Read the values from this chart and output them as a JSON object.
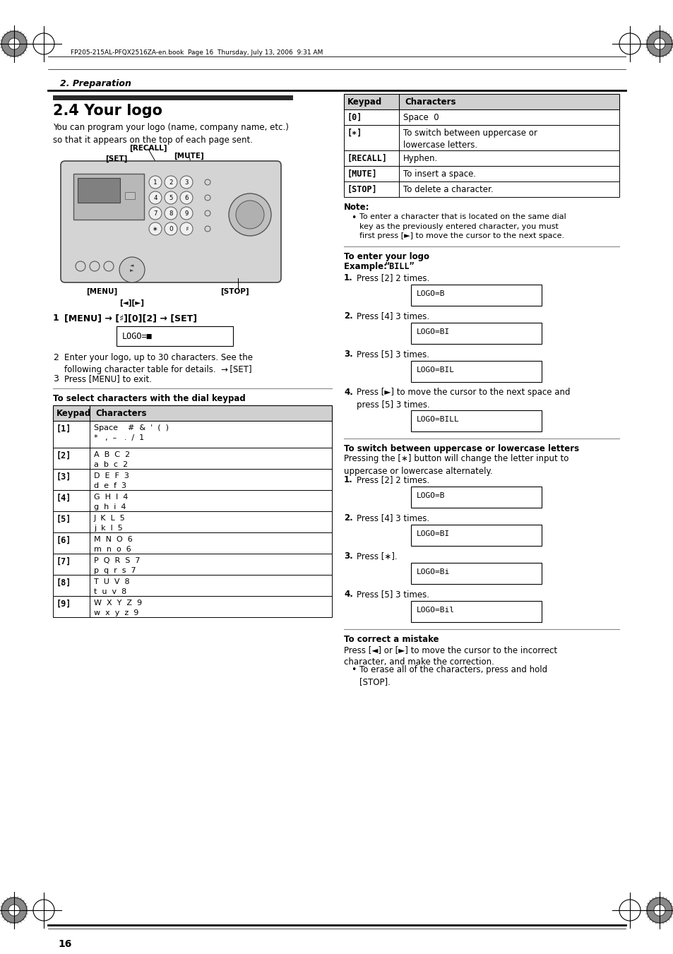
{
  "page_title": "2. Preparation",
  "section_title": "2.4 Your logo",
  "section_desc": "You can program your logo (name, company name, etc.)\nso that it appears on the top of each page sent.",
  "header_text": "FP205-215AL-PFQX2516ZA-en.book  Page 16  Thursday, July 13, 2006  9:31 AM",
  "page_number": "16",
  "bg_color": "#ffffff",
  "keypad_table_right": {
    "rows": [
      [
        "[0]",
        "Space  0",
        22
      ],
      [
        "[∗]",
        "To switch between uppercase or\nlowercase letters.",
        36
      ],
      [
        "[RECALL]",
        "Hyphen.",
        22
      ],
      [
        "[MUTE]",
        "To insert a space.",
        22
      ],
      [
        "[STOP]",
        "To delete a character.",
        22
      ]
    ]
  },
  "keypad_table_left": {
    "rows": [
      [
        "[1]",
        "Space    #  &  '  (  )\n*   ,  –   .  /  1",
        38
      ],
      [
        "[2]",
        "A  B  C  2\na  b  c  2",
        30
      ],
      [
        "[3]",
        "D  E  F  3\nd  e  f  3",
        30
      ],
      [
        "[4]",
        "G  H  I  4\ng  h  i  4",
        30
      ],
      [
        "[5]",
        "J  K  L  5\nj  k  l  5",
        30
      ],
      [
        "[6]",
        "M  N  O  6\nm  n  o  6",
        30
      ],
      [
        "[7]",
        "P  Q  R  S  7\np  q  r  s  7",
        30
      ],
      [
        "[8]",
        "T  U  V  8\nt  u  v  8",
        30
      ],
      [
        "[9]",
        "W  X  Y  Z  9\nw  x  y  z  9",
        30
      ]
    ]
  }
}
